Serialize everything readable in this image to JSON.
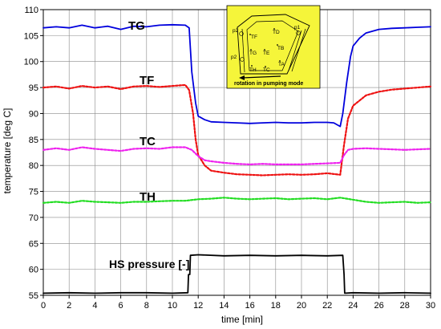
{
  "chart_data": {
    "type": "line",
    "title": "",
    "xlabel": "time [min]",
    "ylabel": "temperature [deg C]",
    "xlim": [
      0,
      30
    ],
    "ylim": [
      55,
      110
    ],
    "xticks": [
      0,
      2,
      4,
      6,
      8,
      10,
      12,
      14,
      16,
      18,
      20,
      22,
      24,
      26,
      28,
      30
    ],
    "yticks": [
      55,
      60,
      65,
      70,
      75,
      80,
      85,
      90,
      95,
      100,
      105,
      110
    ],
    "grid": true,
    "series": [
      {
        "name": "TG",
        "color": "#0000dd",
        "style": "solid",
        "x": [
          0,
          1,
          2,
          3,
          4,
          5,
          6,
          7,
          8,
          9,
          10,
          11,
          11.3,
          11.5,
          11.8,
          12,
          12.5,
          13,
          14,
          15,
          16,
          17,
          18,
          19,
          20,
          21,
          22,
          22.5,
          23,
          23.2,
          23.5,
          23.8,
          24,
          24.5,
          25,
          26,
          27,
          28,
          29,
          30
        ],
        "y": [
          106.5,
          106.7,
          106.5,
          107,
          106.5,
          106.8,
          106.2,
          106.8,
          106.7,
          107,
          107.1,
          107,
          106.5,
          98,
          92,
          89.5,
          88.8,
          88.4,
          88.3,
          88.2,
          88.1,
          88.2,
          88.3,
          88.2,
          88.2,
          88.3,
          88.3,
          88.2,
          87.5,
          90,
          96,
          101,
          103,
          104.5,
          105.5,
          106.2,
          106.4,
          106.5,
          106.6,
          106.7
        ]
      },
      {
        "name": "TF",
        "color": "#ee1111",
        "style": "dotted",
        "x": [
          0,
          1,
          2,
          3,
          4,
          5,
          6,
          7,
          8,
          9,
          10,
          11,
          11.3,
          11.6,
          11.8,
          12,
          12.5,
          13,
          14,
          15,
          16,
          17,
          18,
          19,
          20,
          21,
          22,
          23,
          23.3,
          23.6,
          24,
          24.5,
          25,
          26,
          27,
          28,
          29,
          30
        ],
        "y": [
          95,
          95.2,
          94.8,
          95.3,
          95,
          95.2,
          94.7,
          95.2,
          95.3,
          95.1,
          95.3,
          95.5,
          94.5,
          90,
          85,
          82,
          80,
          79,
          78.6,
          78.3,
          78.2,
          78.1,
          78.2,
          78.3,
          78.2,
          78.3,
          78.5,
          78.2,
          84,
          89,
          91.5,
          92.5,
          93.5,
          94.2,
          94.6,
          94.8,
          95,
          95.2
        ]
      },
      {
        "name": "TC",
        "color": "#ee22ee",
        "style": "dotted",
        "x": [
          0,
          1,
          2,
          3,
          4,
          5,
          6,
          7,
          8,
          9,
          10,
          11,
          11.5,
          12,
          12.5,
          13,
          14,
          15,
          16,
          17,
          18,
          19,
          20,
          21,
          22,
          23,
          23.3,
          23.6,
          24,
          25,
          26,
          27,
          28,
          29,
          30
        ],
        "y": [
          83,
          83.3,
          83,
          83.5,
          83.2,
          83,
          82.8,
          83.2,
          83.3,
          83.2,
          83.5,
          83.5,
          83,
          81.8,
          81,
          80.8,
          80.5,
          80.3,
          80.2,
          80.3,
          80.2,
          80.2,
          80.2,
          80.3,
          80.4,
          80.5,
          82,
          83,
          83.2,
          83.3,
          83.2,
          83.1,
          83,
          83.1,
          83.2
        ]
      },
      {
        "name": "TH",
        "color": "#22dd22",
        "style": "dotted",
        "x": [
          0,
          1,
          2,
          3,
          4,
          5,
          6,
          7,
          8,
          9,
          10,
          11,
          12,
          13,
          14,
          15,
          16,
          17,
          18,
          19,
          20,
          21,
          22,
          23,
          24,
          25,
          26,
          27,
          28,
          29,
          30
        ],
        "y": [
          72.8,
          73,
          72.8,
          73.2,
          73,
          72.9,
          72.8,
          73,
          73,
          73.1,
          73.2,
          73.2,
          73.5,
          73.6,
          73.8,
          73.6,
          73.5,
          73.6,
          73.7,
          73.5,
          73.6,
          73.7,
          73.5,
          73.8,
          73.4,
          73,
          72.8,
          72.9,
          73,
          72.8,
          72.9
        ]
      },
      {
        "name": "HS pressure [-]",
        "color": "#000000",
        "style": "solid",
        "x": [
          0,
          2,
          4,
          6,
          8,
          10,
          11.2,
          11.25,
          11.35,
          11.4,
          12,
          14,
          16,
          18,
          20,
          22,
          23.2,
          23.3,
          23.35,
          24,
          26,
          28,
          30
        ],
        "y": [
          55.4,
          55.5,
          55.4,
          55.5,
          55.5,
          55.4,
          55.5,
          59,
          59,
          62.7,
          62.8,
          62.6,
          62.7,
          62.6,
          62.7,
          62.6,
          62.7,
          59,
          55.4,
          55.5,
          55.4,
          55.5,
          55.4
        ]
      }
    ],
    "series_labels": {
      "tg": "TG",
      "tf": "TF",
      "tc": "TC",
      "th": "TH",
      "hs": "HS pressure [-]"
    },
    "inset": {
      "background": "#f5f53a",
      "labels": {
        "p1": "p1",
        "p2a": "p2",
        "p2b": "p2",
        "ta": "TA",
        "tb": "TB",
        "tc": "TC",
        "td": "TD",
        "te": "TE",
        "tf": "TF",
        "tg": "TG",
        "th": "TH"
      },
      "caption": "rotation in pumping mode"
    }
  }
}
